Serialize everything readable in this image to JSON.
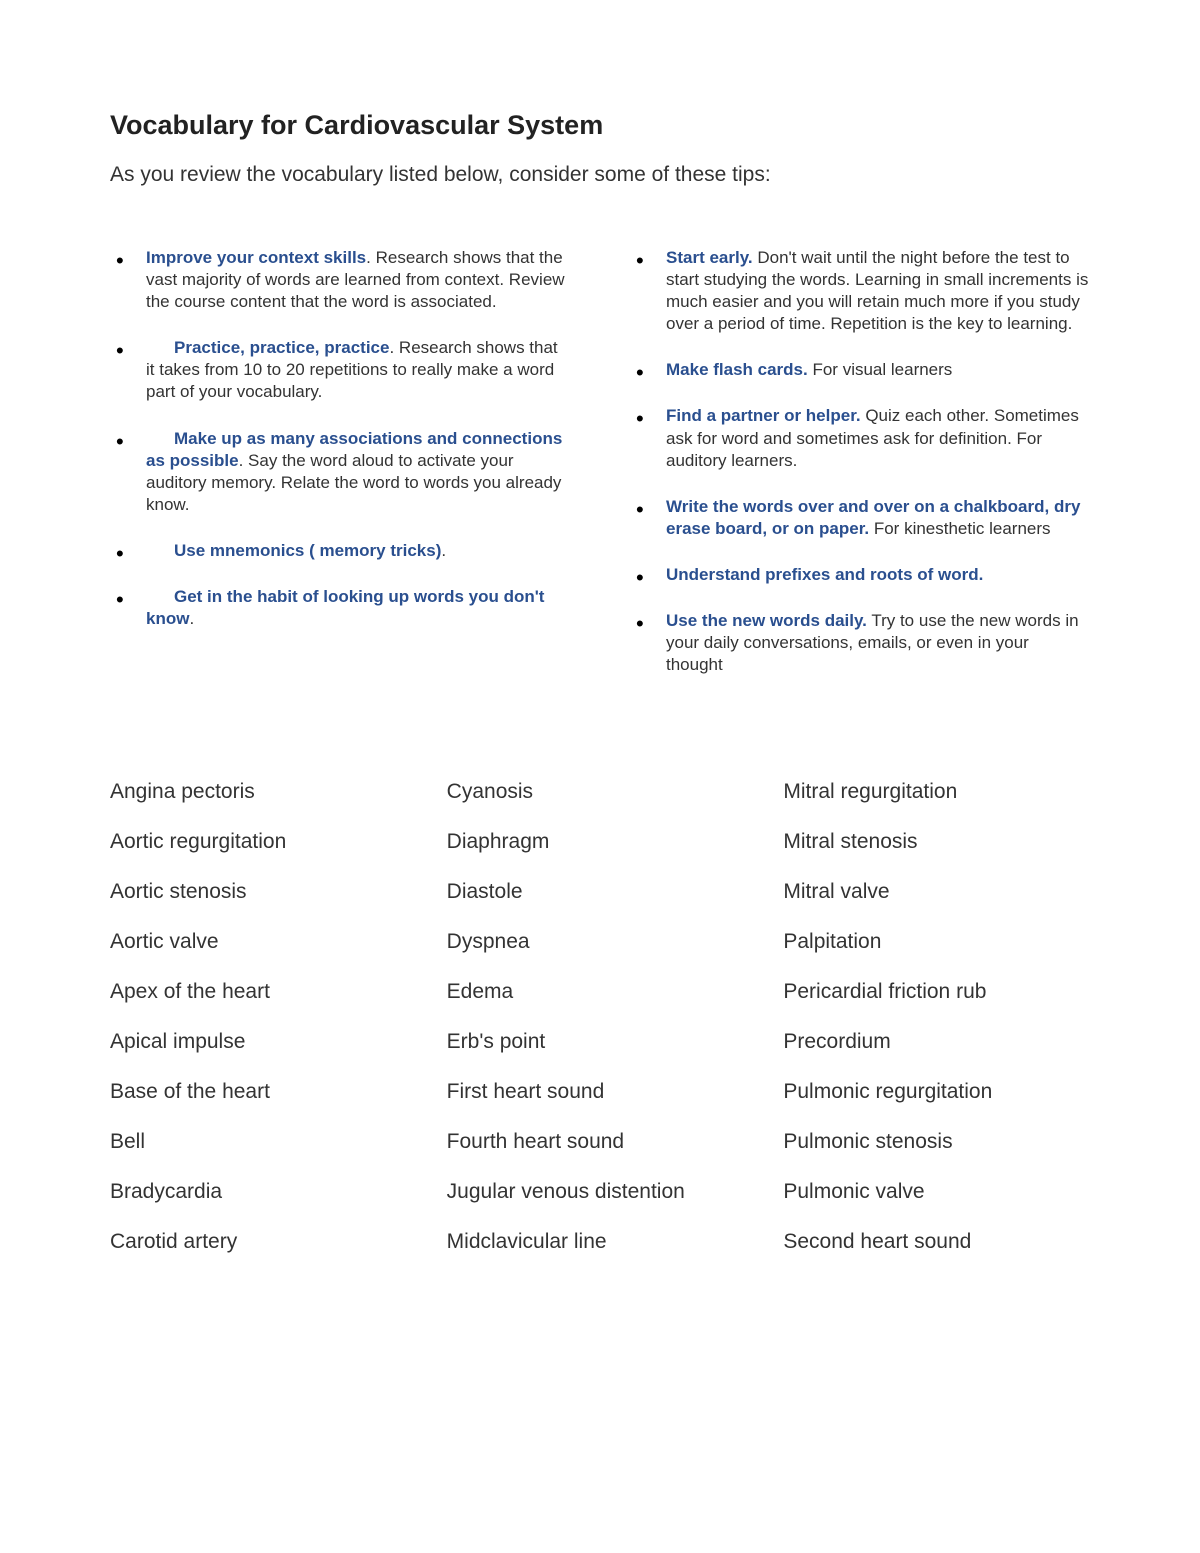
{
  "title": "Vocabulary for Cardiovascular System",
  "intro": "As you review the vocabulary listed below, consider some of these tips:",
  "colors": {
    "heading": "#222222",
    "body": "#333333",
    "accent": "#2a4f8f",
    "background": "#ffffff"
  },
  "typography": {
    "title_fontsize": 27,
    "intro_fontsize": 21,
    "tip_fontsize": 17,
    "vocab_fontsize": 21
  },
  "tips_left": [
    {
      "bold": "Improve your context skills",
      "rest": ". Research shows that the vast majority of words are learned from context.  Review the course content that the word is associated.",
      "indent": false
    },
    {
      "bold": "Practice, practice, practice",
      "rest": ". Research shows that it takes from 10 to 20 repetitions to really make a word part of your vocabulary.",
      "indent": true
    },
    {
      "bold": "Make up as many associations and connections as possible",
      "rest": ". Say the word aloud to activate your auditory memory. Relate the word to words you already know.",
      "indent": true
    },
    {
      "bold": "Use mnemonics ( memory tricks)",
      "rest": ".",
      "indent": true
    },
    {
      "bold": "Get in the habit of looking up words you don't know",
      "rest": ".",
      "indent": true
    }
  ],
  "tips_right": [
    {
      "bold": "Start early.",
      "rest": " Don't wait until the night before the test to start studying the words. Learning in small increments is much easier and you will retain much more if you study over a period of time. Repetition is the key to learning.",
      "indent": false
    },
    {
      "bold": "Make flash cards.",
      "rest": "  For visual learners",
      "indent": false
    },
    {
      "bold": "Find a partner or helper.",
      "rest": " Quiz each other.  Sometimes ask for word and sometimes ask for definition.  For auditory learners.",
      "indent": false
    },
    {
      "bold": "Write the words over and over on a chalkboard, dry erase board, or on paper.",
      "rest": " For kinesthetic learners",
      "indent": false
    },
    {
      "bold": "Understand prefixes and roots of word.",
      "rest": "",
      "indent": false
    },
    {
      "bold": "Use the new words daily.",
      "rest": " Try to use the new words in your daily conversations, emails, or even in your thought",
      "indent": false
    }
  ],
  "vocab_col1": [
    "Angina pectoris",
    "Aortic regurgitation",
    "Aortic stenosis",
    "Aortic valve",
    "Apex of the heart",
    "Apical impulse",
    "Base of the heart",
    "Bell",
    "Bradycardia",
    "Carotid artery"
  ],
  "vocab_col2": [
    "Cyanosis",
    "Diaphragm",
    "Diastole",
    "Dyspnea",
    "Edema",
    "Erb's point",
    "First heart sound",
    "Fourth heart sound",
    "Jugular venous distention",
    "Midclavicular line"
  ],
  "vocab_col3": [
    "Mitral regurgitation",
    "Mitral stenosis",
    "Mitral valve",
    "Palpitation",
    "Pericardial friction rub",
    "Precordium",
    "Pulmonic regurgitation",
    "Pulmonic stenosis",
    "Pulmonic valve",
    "Second heart sound"
  ]
}
